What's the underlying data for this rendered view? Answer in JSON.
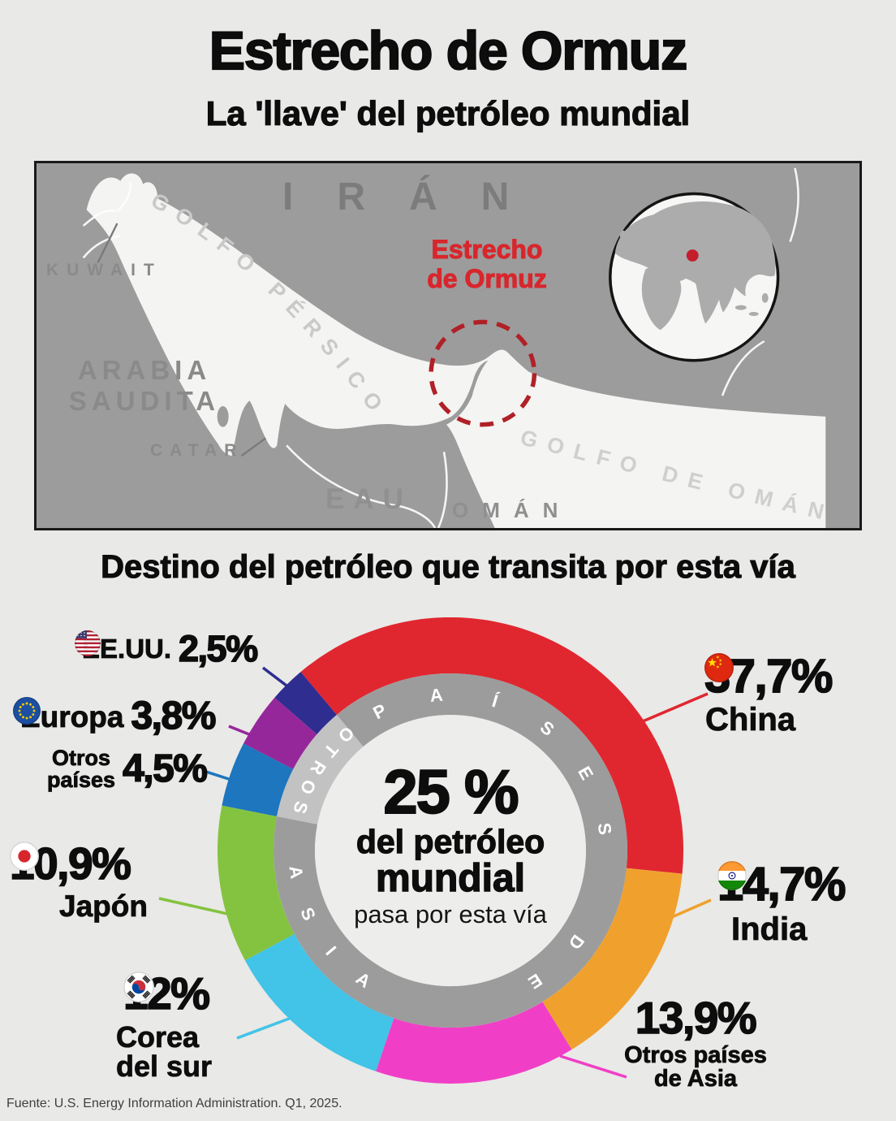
{
  "header": {
    "title": "Estrecho de Ormuz",
    "subtitle": "La 'llave' del petróleo mundial"
  },
  "map": {
    "labels": {
      "iran": "IRÁN",
      "kuwait": "KUWAIT",
      "arabia_line1": "ARABIA",
      "arabia_line2": "SAUDITA",
      "catar": "CATAR",
      "eau": "EAU",
      "oman": "OMÁN",
      "golfo_persico": "GOLFO PÉRSICO",
      "golfo_de_oman": "GOLFO DE OMÁN",
      "strait_line1": "Estrecho",
      "strait_line2": "de Ormuz"
    },
    "colors": {
      "land": "#9C9C9C",
      "water": "#F4F4F2",
      "country_border": "#FFFFFF",
      "land_label": "#7C7C7C",
      "water_label": "#C9C9C9",
      "strait_label": "#D8262D",
      "dashed_circle": "#B02127",
      "frame": "#1A1A1A",
      "globe_land": "#ACACAC",
      "globe_dot": "#C41E2E"
    }
  },
  "chart_section": {
    "heading": "Destino del petróleo que transita por esta vía"
  },
  "chart_data": {
    "type": "donut",
    "title": "Destino del petróleo que transita por esta vía",
    "subtitle_center": "25 % del petróleo mundial pasa por esta vía",
    "start_angle_deg": -40,
    "center_label": {
      "value": "25 %",
      "line1": "del petróleo",
      "line2": "mundial",
      "line3": "pasa por esta vía"
    },
    "series": [
      {
        "name": "China",
        "value": 37.7,
        "value_label": "37,7%",
        "color": "#E02730",
        "group": "asia",
        "flag": "china"
      },
      {
        "name": "India",
        "value": 14.7,
        "value_label": "14,7%",
        "color": "#F0A12D",
        "group": "asia",
        "flag": "india"
      },
      {
        "name": "Otros países de Asia",
        "label_lines": [
          "Otros países",
          "de Asia"
        ],
        "value": 13.9,
        "value_label": "13,9%",
        "color": "#F03FC6",
        "group": "asia",
        "flag": null
      },
      {
        "name": "Corea del sur",
        "label_lines": [
          "Corea",
          "del sur"
        ],
        "value": 12,
        "value_label": "12%",
        "color": "#42C3E8",
        "group": "asia",
        "flag": "south-korea"
      },
      {
        "name": "Japón",
        "value": 10.9,
        "value_label": "10,9%",
        "color": "#84C33F",
        "group": "asia",
        "flag": "japan"
      },
      {
        "name": "Otros países",
        "label_lines": [
          "Otros",
          "países"
        ],
        "value": 4.5,
        "value_label": "4,5%",
        "color": "#1D76BE",
        "group": "otros",
        "flag": null
      },
      {
        "name": "Europa",
        "value": 3.8,
        "value_label": "3,8%",
        "color": "#96279B",
        "group": "otros",
        "flag": "europe"
      },
      {
        "name": "EE.UU.",
        "value": 2.5,
        "value_label": "2,5%",
        "color": "#2F2D8F",
        "group": "otros",
        "flag": "usa"
      }
    ],
    "ring": {
      "dark_color": "#9C9C9C",
      "light_color": "#C2C2C2",
      "text_color": "#FFFFFF",
      "segments": [
        {
          "text": "PAÍSES",
          "start": -27,
          "end": 82,
          "flip": false
        },
        {
          "text": "DE",
          "start": 126,
          "end": 147,
          "flip": false
        },
        {
          "text": "ASIA",
          "start": 262,
          "end": 214,
          "flip": true
        },
        {
          "text": "OTROS",
          "start": 318,
          "end": 286,
          "flip": true
        }
      ]
    },
    "center_circle_color": "#EDEDEB"
  },
  "footer": {
    "source": "Fuente: U.S. Energy Information Administration. Q1, 2025."
  }
}
